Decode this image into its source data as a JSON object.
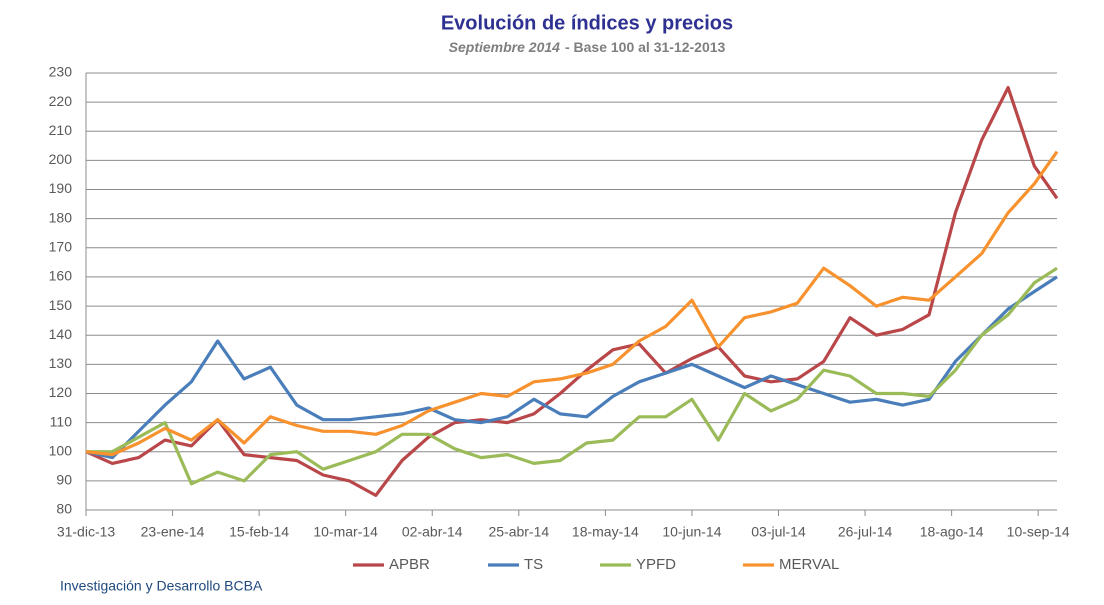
{
  "chart_data": {
    "type": "line",
    "title": "Evolución de índices y precios",
    "subtitle": [
      "Septiembre 2014",
      "- Base 100 al 31-12-2013"
    ],
    "x": [
      "2013-12-31",
      "2014-01-07",
      "2014-01-14",
      "2014-01-21",
      "2014-01-28",
      "2014-02-04",
      "2014-02-11",
      "2014-02-18",
      "2014-02-25",
      "2014-03-04",
      "2014-03-11",
      "2014-03-18",
      "2014-03-25",
      "2014-04-01",
      "2014-04-08",
      "2014-04-15",
      "2014-04-22",
      "2014-04-29",
      "2014-05-06",
      "2014-05-13",
      "2014-05-20",
      "2014-05-27",
      "2014-06-03",
      "2014-06-10",
      "2014-06-17",
      "2014-06-24",
      "2014-07-01",
      "2014-07-08",
      "2014-07-15",
      "2014-07-22",
      "2014-07-29",
      "2014-08-05",
      "2014-08-12",
      "2014-08-19",
      "2014-08-26",
      "2014-09-02",
      "2014-09-09",
      "2014-09-15"
    ],
    "series": [
      {
        "name": "APBR",
        "color": "#b9474a",
        "values": [
          100,
          96,
          98,
          104,
          102,
          111,
          99,
          98,
          97,
          92,
          90,
          85,
          97,
          105,
          110,
          111,
          110,
          113,
          120,
          128,
          135,
          137,
          127,
          132,
          136,
          126,
          124,
          125,
          131,
          146,
          140,
          142,
          147,
          182,
          207,
          225,
          198,
          187
        ]
      },
      {
        "name": "TS",
        "color": "#4a7ebb",
        "values": [
          100,
          98,
          107,
          116,
          124,
          138,
          125,
          129,
          116,
          111,
          111,
          112,
          113,
          115,
          111,
          110,
          112,
          118,
          113,
          112,
          119,
          124,
          127,
          130,
          126,
          122,
          126,
          123,
          120,
          117,
          118,
          116,
          118,
          131,
          140,
          149,
          155,
          160
        ]
      },
      {
        "name": "YPFD",
        "color": "#9bbb59",
        "values": [
          100,
          100,
          105,
          110,
          89,
          93,
          90,
          99,
          100,
          94,
          97,
          100,
          106,
          106,
          101,
          98,
          99,
          96,
          97,
          103,
          104,
          112,
          112,
          118,
          104,
          120,
          114,
          118,
          128,
          126,
          120,
          120,
          119,
          128,
          140,
          147,
          158,
          163
        ]
      },
      {
        "name": "MERVAL",
        "color": "#f7922f",
        "values": [
          100,
          99,
          103,
          108,
          104,
          111,
          103,
          112,
          109,
          107,
          107,
          106,
          109,
          114,
          117,
          120,
          119,
          124,
          125,
          127,
          130,
          138,
          143,
          152,
          136,
          146,
          148,
          151,
          163,
          157,
          150,
          153,
          152,
          160,
          168,
          182,
          192,
          203
        ]
      }
    ],
    "xlim": [
      "2013-12-31",
      "2014-09-15"
    ],
    "xticks": [
      {
        "value": "2013-12-31",
        "label": "31-dic-13"
      },
      {
        "value": "2014-01-23",
        "label": "23-ene-14"
      },
      {
        "value": "2014-02-15",
        "label": "15-feb-14"
      },
      {
        "value": "2014-03-10",
        "label": "10-mar-14"
      },
      {
        "value": "2014-04-02",
        "label": "02-abr-14"
      },
      {
        "value": "2014-04-25",
        "label": "25-abr-14"
      },
      {
        "value": "2014-05-18",
        "label": "18-may-14"
      },
      {
        "value": "2014-06-10",
        "label": "10-jun-14"
      },
      {
        "value": "2014-07-03",
        "label": "03-jul-14"
      },
      {
        "value": "2014-07-26",
        "label": "26-jul-14"
      },
      {
        "value": "2014-08-18",
        "label": "18-ago-14"
      },
      {
        "value": "2014-09-10",
        "label": "10-sep-14"
      }
    ],
    "ylim": [
      80,
      230
    ],
    "yticks": [
      80,
      90,
      100,
      110,
      120,
      130,
      140,
      150,
      160,
      170,
      180,
      190,
      200,
      210,
      220,
      230
    ],
    "grid": true,
    "legend": "bottom",
    "footer": "Investigación y Desarrollo BCBA"
  }
}
